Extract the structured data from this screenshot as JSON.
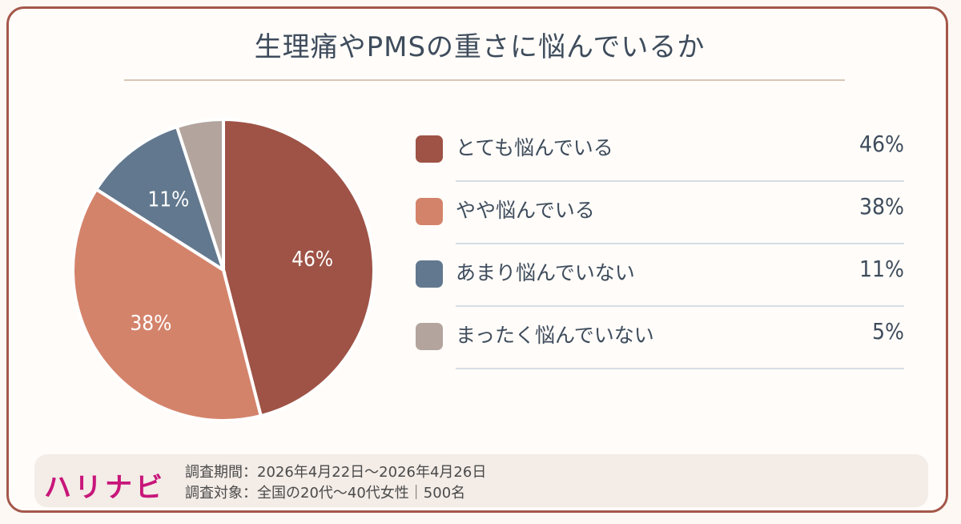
{
  "title": "生理痛やPMSの重さに悩んでいるか",
  "chart_data": {
    "type": "pie",
    "categories": [
      "とても悩んでいる",
      "やや悩んでいる",
      "あまり悩んでいない",
      "まったく悩んでいない"
    ],
    "values": [
      46,
      38,
      11,
      5
    ],
    "value_labels": [
      "46%",
      "38%",
      "11%",
      "5%"
    ],
    "slice_labels": [
      "46%",
      "38%",
      "11%",
      ""
    ],
    "colors": [
      "#9e5346",
      "#d4836b",
      "#62788e",
      "#b3a49d"
    ],
    "legend_position": "right"
  },
  "footer": {
    "brand": "ハリナビ",
    "period": "調査期間：2026年4月22日〜2026年4月26日",
    "target": "調査対象：全国の20代〜40代女性｜500名"
  }
}
